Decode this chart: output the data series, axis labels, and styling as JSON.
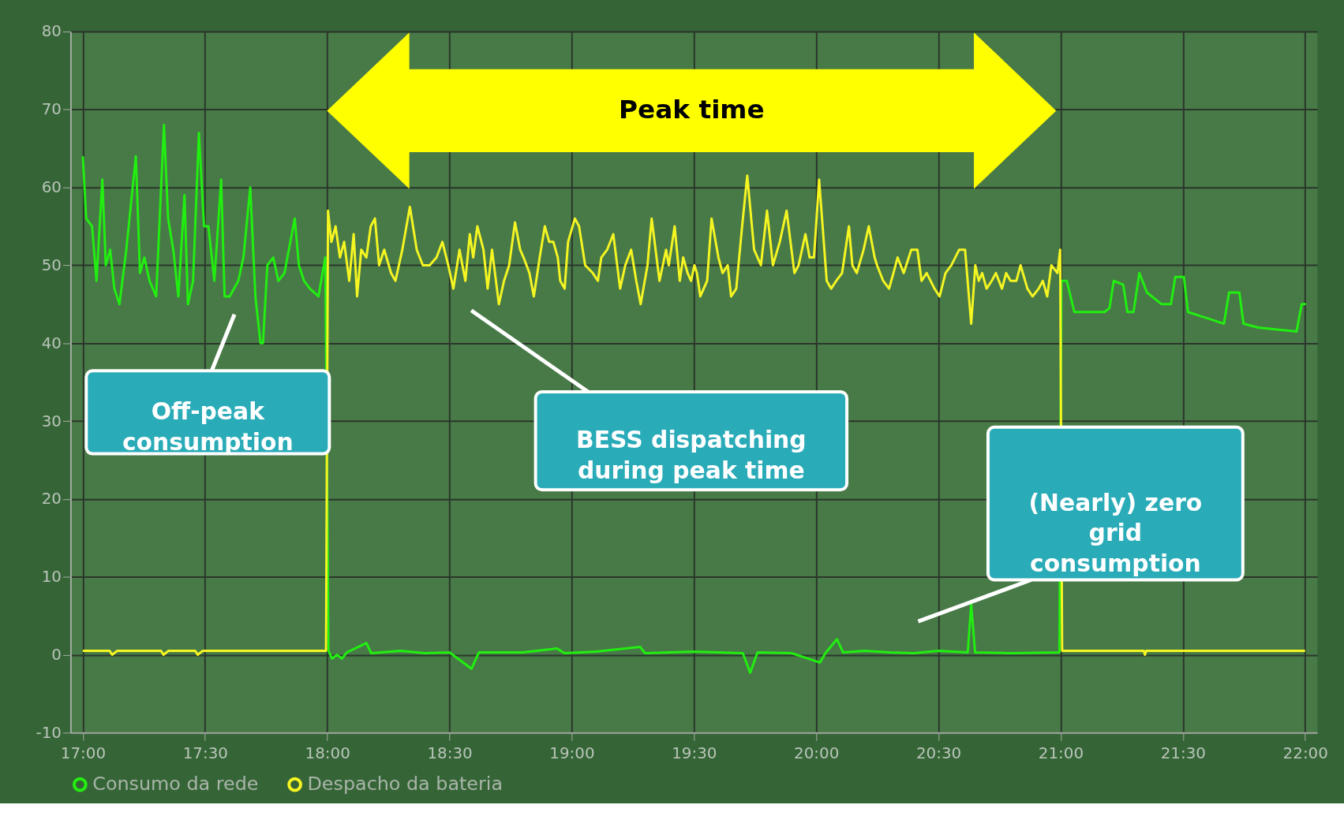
{
  "chart_data": {
    "type": "line",
    "xlim": [
      16.95,
      22.05
    ],
    "ylim": [
      -10,
      80
    ],
    "xticks": [
      {
        "value": 17,
        "label": "17:00"
      },
      {
        "value": 17.5,
        "label": "17:30"
      },
      {
        "value": 18,
        "label": "18:00"
      },
      {
        "value": 18.5,
        "label": "18:30"
      },
      {
        "value": 19,
        "label": "19:00"
      },
      {
        "value": 19.5,
        "label": "19:30"
      },
      {
        "value": 20,
        "label": "20:00"
      },
      {
        "value": 20.5,
        "label": "20:30"
      },
      {
        "value": 21,
        "label": "21:00"
      },
      {
        "value": 21.5,
        "label": "21:30"
      },
      {
        "value": 22,
        "label": "22:00"
      }
    ],
    "yticks": [
      -10,
      0,
      10,
      20,
      30,
      40,
      50,
      60,
      70,
      80
    ],
    "grid": true,
    "legend": "bottom",
    "series": [
      {
        "name": "Consumo da rede",
        "color": "#22ee11",
        "x": [
          17.0,
          17.014,
          17.038,
          17.056,
          17.08,
          17.094,
          17.112,
          17.129,
          17.15,
          17.178,
          17.217,
          17.234,
          17.252,
          17.273,
          17.3,
          17.332,
          17.349,
          17.37,
          17.391,
          17.416,
          17.43,
          17.451,
          17.475,
          17.496,
          17.514,
          17.538,
          17.566,
          17.58,
          17.601,
          17.636,
          17.657,
          17.685,
          17.706,
          17.727,
          17.737,
          17.755,
          17.779,
          17.8,
          17.825,
          17.849,
          17.867,
          17.884,
          17.905,
          17.929,
          17.964,
          17.992,
          18.005,
          18.02,
          18.04,
          18.06,
          18.08,
          18.16,
          18.18,
          18.3,
          18.4,
          18.5,
          18.59,
          18.62,
          18.8,
          18.94,
          18.97,
          19.1,
          19.28,
          19.3,
          19.5,
          19.7,
          19.73,
          19.76,
          19.9,
          20.015,
          20.04,
          20.085,
          20.11,
          20.2,
          20.3,
          20.4,
          20.5,
          20.62,
          20.634,
          20.65,
          20.8,
          20.995,
          21.003,
          21.025,
          21.056,
          21.179,
          21.2,
          21.217,
          21.256,
          21.273,
          21.298,
          21.322,
          21.353,
          21.413,
          21.451,
          21.469,
          21.504,
          21.521,
          21.668,
          21.689,
          21.731,
          21.748,
          21.808,
          21.965,
          21.986,
          22.003
        ],
        "values": [
          64,
          56,
          55,
          48,
          61,
          50,
          52,
          47,
          45,
          52,
          64,
          49,
          51,
          48,
          46,
          68,
          56,
          52,
          46,
          59,
          45,
          48,
          67,
          55,
          55,
          48,
          61,
          46,
          46,
          48,
          51,
          60,
          46,
          40,
          40,
          50,
          51,
          48,
          49,
          53,
          56,
          50,
          48,
          47,
          46,
          51,
          0.5,
          -0.5,
          0,
          -0.5,
          0.3,
          1.5,
          0.2,
          0.5,
          0.2,
          0.3,
          -1.8,
          0.3,
          0.3,
          0.8,
          0.2,
          0.4,
          1,
          0.2,
          0.4,
          0.2,
          -2.3,
          0.3,
          0.2,
          -1,
          0.3,
          2,
          0.3,
          0.5,
          0.3,
          0.2,
          0.5,
          0.3,
          6.5,
          0.3,
          0.2,
          0.3,
          48,
          48,
          44,
          44,
          44.5,
          48,
          47.5,
          44,
          44,
          49,
          46.5,
          45,
          45,
          48.5,
          48.5,
          44,
          42.5,
          46.5,
          46.5,
          42.5,
          42,
          41.5,
          45,
          45
        ]
      },
      {
        "name": "Despacho da  bateria",
        "color": "#f5f522",
        "x": [
          17.0,
          17.11,
          17.12,
          17.14,
          17.32,
          17.33,
          17.35,
          17.46,
          17.47,
          17.49,
          17.995,
          18.003,
          18.017,
          18.034,
          18.052,
          18.069,
          18.09,
          18.108,
          18.122,
          18.139,
          18.16,
          18.178,
          18.195,
          18.212,
          18.233,
          18.261,
          18.279,
          18.307,
          18.338,
          18.366,
          18.391,
          18.419,
          18.447,
          18.471,
          18.495,
          18.516,
          18.541,
          18.565,
          18.583,
          18.597,
          18.614,
          18.639,
          18.656,
          18.674,
          18.702,
          18.723,
          18.744,
          18.768,
          18.789,
          18.803,
          18.827,
          18.845,
          18.869,
          18.89,
          18.908,
          18.925,
          18.943,
          18.953,
          18.971,
          18.985,
          19.013,
          19.03,
          19.055,
          19.086,
          19.107,
          19.121,
          19.145,
          19.17,
          19.198,
          19.219,
          19.243,
          19.264,
          19.282,
          19.31,
          19.327,
          19.359,
          19.386,
          19.397,
          19.421,
          19.442,
          19.456,
          19.474,
          19.488,
          19.502,
          19.512,
          19.526,
          19.554,
          19.572,
          19.6,
          19.617,
          19.638,
          19.652,
          19.673,
          19.697,
          19.718,
          19.746,
          19.774,
          19.799,
          19.823,
          19.851,
          19.879,
          19.911,
          19.928,
          19.956,
          19.973,
          19.991,
          20.012,
          20.043,
          20.061,
          20.082,
          20.106,
          20.134,
          20.148,
          20.166,
          20.194,
          20.215,
          20.239,
          20.249,
          20.274,
          20.298,
          20.316,
          20.333,
          20.358,
          20.389,
          20.414,
          20.431,
          20.452,
          20.484,
          20.505,
          20.529,
          20.553,
          20.585,
          20.609,
          20.634,
          20.651,
          20.665,
          20.679,
          20.697,
          20.718,
          20.735,
          20.76,
          20.777,
          20.795,
          20.819,
          20.836,
          20.864,
          20.885,
          20.91,
          20.927,
          20.945,
          20.962,
          20.987,
          20.998,
          21.006,
          21.34,
          21.345,
          21.35,
          22.0
        ],
        "values": [
          0.5,
          0.5,
          0,
          0.5,
          0.5,
          0,
          0.5,
          0.5,
          0,
          0.5,
          0.5,
          57,
          53,
          55,
          51,
          53,
          48,
          54,
          46,
          52,
          51,
          55,
          56,
          50,
          52,
          49,
          48,
          52,
          57.5,
          52,
          50,
          50,
          51,
          53,
          50,
          47,
          52,
          48,
          54,
          51,
          55,
          52,
          47,
          52,
          45,
          48,
          50,
          55.5,
          52,
          51,
          49,
          46,
          51,
          55,
          53,
          53,
          51,
          48,
          47,
          53,
          56,
          55,
          50,
          49,
          48,
          51,
          52,
          54,
          47,
          50,
          52,
          48,
          45,
          50,
          56,
          48,
          52,
          50,
          55,
          48,
          51,
          49,
          48,
          50,
          49,
          46,
          48,
          56,
          51,
          49,
          50,
          46,
          47,
          55,
          61.5,
          52,
          50,
          57,
          50,
          53,
          57,
          49,
          50,
          54,
          51,
          51,
          61,
          48,
          47,
          48,
          49,
          55,
          50,
          49,
          52,
          55,
          51,
          50,
          48,
          47,
          49,
          51,
          49,
          52,
          52,
          48,
          49,
          47,
          46,
          49,
          50,
          52,
          52,
          42.5,
          50,
          48,
          49,
          47,
          48,
          49,
          47,
          49,
          48,
          48,
          50,
          47,
          46,
          47,
          48,
          46,
          50,
          49,
          52,
          0.5,
          0.5,
          0,
          0.5,
          0.5
        ]
      }
    ],
    "annotations": [
      "Peak time",
      "Off-peak\nconsumption",
      "BESS dispatching\nduring peak time",
      "(Nearly) zero\ngrid\nconsumption"
    ]
  }
}
